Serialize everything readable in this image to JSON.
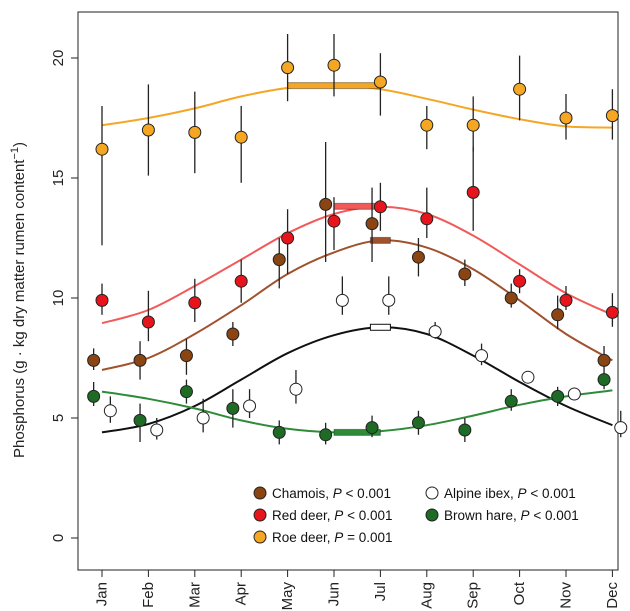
{
  "chart_data": {
    "type": "scatter",
    "ylabel_main": "Phosphorus (g · kg dry matter rumen content",
    "ylabel_sup": "−1",
    "ylabel_end": ")",
    "ylim": [
      0,
      22
    ],
    "yticks": [
      0,
      5,
      10,
      15,
      20
    ],
    "categories": [
      "Jan",
      "Feb",
      "Mar",
      "Apr",
      "May",
      "Jun",
      "Jul",
      "Aug",
      "Sep",
      "Oct",
      "Nov",
      "Dec"
    ],
    "grid": false,
    "legend_position": "bottom-right",
    "series": [
      {
        "name": "Roe deer",
        "pvalue_prefix": "P",
        "pvalue_text": " = 0.001",
        "color": "#F5A623",
        "line_color": "#F5A623",
        "offset": 0,
        "values": [
          16.2,
          17.0,
          16.9,
          16.7,
          19.6,
          19.7,
          19.0,
          17.2,
          17.2,
          18.7,
          17.5,
          17.6
        ],
        "low": [
          12.2,
          15.1,
          15.2,
          14.8,
          18.2,
          18.4,
          17.6,
          16.2,
          16.1,
          17.4,
          16.6,
          16.6
        ],
        "high": [
          18.0,
          18.9,
          18.6,
          18.0,
          21.0,
          21.0,
          20.2,
          18.0,
          18.4,
          20.1,
          18.5,
          18.7
        ],
        "curve": [
          17.2,
          17.5,
          17.9,
          18.4,
          18.75,
          18.85,
          18.7,
          18.3,
          17.85,
          17.45,
          17.15,
          17.1
        ],
        "peak": {
          "from": "May",
          "to": "Jul",
          "value": 18.85
        }
      },
      {
        "name": "Red deer",
        "pvalue_prefix": "P",
        "pvalue_text": " < 0.001",
        "color": "#E8141C",
        "line_color": "#F25A5A",
        "offset": 0,
        "values": [
          9.9,
          9.0,
          9.8,
          10.7,
          12.5,
          13.2,
          13.8,
          13.3,
          14.4,
          10.7,
          9.9,
          9.4
        ],
        "low": [
          9.3,
          8.2,
          9.0,
          9.8,
          11.0,
          12.0,
          12.8,
          12.5,
          12.8,
          10.2,
          9.5,
          8.8
        ],
        "high": [
          10.6,
          10.3,
          10.8,
          11.6,
          13.7,
          14.2,
          14.8,
          14.6,
          16.3,
          11.2,
          10.5,
          10.2
        ],
        "curve": [
          8.95,
          9.5,
          10.5,
          11.6,
          12.7,
          13.5,
          13.8,
          13.5,
          12.6,
          11.4,
          10.2,
          9.3
        ],
        "peak": {
          "from": "Jun",
          "to": "Jul",
          "value": 13.82
        }
      },
      {
        "name": "Chamois",
        "pvalue_prefix": "P",
        "pvalue_text": " < 0.001",
        "color": "#8B4513",
        "line_color": "#A0522D",
        "offset": -0.18,
        "values": [
          7.4,
          7.4,
          7.6,
          8.5,
          11.6,
          13.9,
          13.1,
          11.7,
          11.0,
          10.0,
          9.3,
          7.4
        ],
        "low": [
          7.0,
          6.6,
          6.8,
          8.0,
          10.4,
          11.5,
          11.5,
          10.9,
          10.5,
          9.6,
          8.7,
          7.0
        ],
        "high": [
          7.9,
          8.2,
          8.3,
          9.0,
          12.5,
          16.5,
          14.6,
          12.5,
          11.6,
          10.6,
          10.1,
          8.0
        ],
        "curve": [
          7.0,
          7.5,
          8.5,
          9.7,
          11.0,
          11.9,
          12.4,
          12.1,
          11.2,
          9.9,
          8.5,
          7.4
        ],
        "peak": {
          "from": "Jul",
          "to": "Jul",
          "value": 12.4
        }
      },
      {
        "name": "Alpine ibex",
        "pvalue_prefix": "P",
        "pvalue_text": " < 0.001",
        "color": "#FFFFFF",
        "line_color": "#111111",
        "offset": 0.18,
        "values": [
          5.3,
          4.5,
          5.0,
          5.5,
          6.2,
          9.9,
          9.9,
          8.6,
          7.6,
          6.7,
          6.0,
          4.6
        ],
        "low": [
          4.8,
          4.1,
          4.4,
          5.0,
          5.6,
          9.3,
          9.3,
          8.3,
          7.2,
          6.6,
          5.9,
          4.2
        ],
        "high": [
          5.9,
          5.0,
          5.8,
          6.2,
          7.0,
          10.9,
          10.9,
          9.0,
          8.1,
          6.9,
          6.2,
          5.3
        ],
        "curve": [
          4.4,
          4.75,
          5.5,
          6.6,
          7.7,
          8.45,
          8.78,
          8.5,
          7.6,
          6.5,
          5.5,
          4.7
        ],
        "peak": {
          "from": "Jul",
          "to": "Jul",
          "value": 8.78
        }
      },
      {
        "name": "Brown hare",
        "pvalue_prefix": "P",
        "pvalue_text": " < 0.001",
        "color": "#1E6B25",
        "line_color": "#2E8B3A",
        "offset": -0.18,
        "values": [
          5.9,
          4.9,
          6.1,
          5.4,
          4.4,
          4.3,
          4.6,
          4.8,
          4.5,
          5.7,
          5.9,
          6.6
        ],
        "low": [
          5.5,
          4.0,
          5.6,
          4.6,
          3.9,
          3.9,
          4.2,
          4.3,
          4.0,
          5.3,
          5.5,
          6.2
        ],
        "high": [
          6.5,
          5.6,
          6.6,
          6.2,
          4.9,
          4.8,
          5.1,
          5.3,
          5.0,
          6.2,
          6.3,
          7.0
        ],
        "curve": [
          6.1,
          5.8,
          5.4,
          4.9,
          4.55,
          4.4,
          4.45,
          4.7,
          5.1,
          5.55,
          5.9,
          6.15
        ],
        "peak": {
          "from": "Jun",
          "to": "Jul",
          "value": 4.4
        }
      }
    ],
    "legend": [
      {
        "series": "Chamois",
        "col": 0,
        "row": 0
      },
      {
        "series": "Alpine ibex",
        "col": 1,
        "row": 0
      },
      {
        "series": "Red deer",
        "col": 0,
        "row": 1
      },
      {
        "series": "Brown hare",
        "col": 1,
        "row": 1
      },
      {
        "series": "Roe deer",
        "col": 0,
        "row": 2
      }
    ]
  }
}
